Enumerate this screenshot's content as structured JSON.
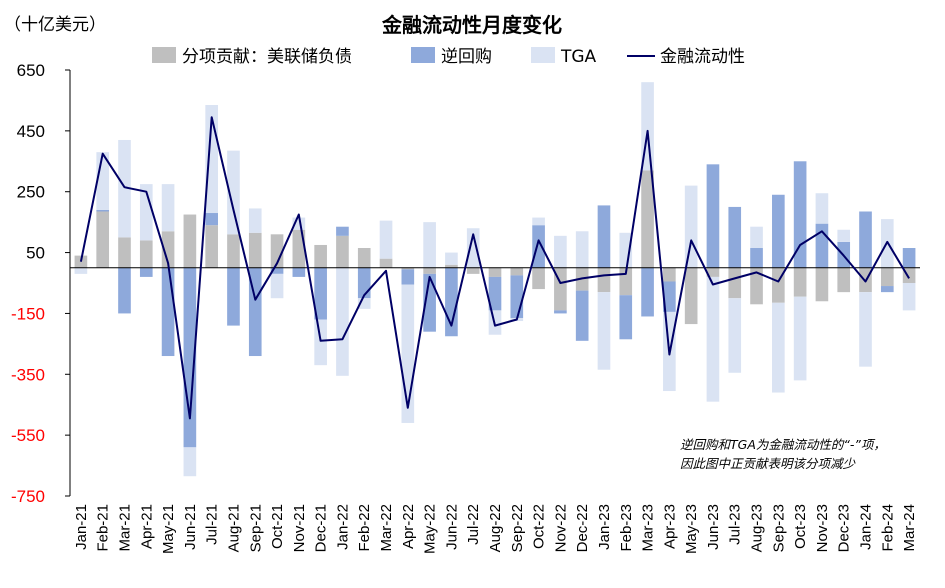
{
  "chart_data": {
    "type": "bar",
    "title": "金融流动性月度变化",
    "unit_label": "（十亿美元）",
    "ylim": [
      -750,
      650
    ],
    "yticks": [
      650,
      450,
      250,
      50,
      -150,
      -350,
      -550,
      -750
    ],
    "grid": false,
    "legend_position": "top",
    "note_lines": [
      "逆回购和TGA为金融流动性的“-”项，",
      "因此图中正贡献表明该分项减少"
    ],
    "colors": {
      "fed_debt": "#bfbfbf",
      "reverse_repo": "#8ea9db",
      "tga": "#dae3f3",
      "liquidity": "#000066",
      "positive_tick": "#000000",
      "negative_tick": "#ff0000"
    },
    "categories": [
      "Jan-21",
      "Feb-21",
      "Mar-21",
      "Apr-21",
      "May-21",
      "Jun-21",
      "Jul-21",
      "Aug-21",
      "Sep-21",
      "Oct-21",
      "Nov-21",
      "Dec-21",
      "Jan-22",
      "Feb-22",
      "Mar-22",
      "Apr-22",
      "May-22",
      "Jun-22",
      "Jul-22",
      "Aug-22",
      "Sep-22",
      "Oct-22",
      "Nov-22",
      "Dec-22",
      "Jan-23",
      "Feb-23",
      "Mar-23",
      "Apr-23",
      "May-23",
      "Jun-23",
      "Jul-23",
      "Aug-23",
      "Sep-23",
      "Oct-23",
      "Nov-23",
      "Dec-23",
      "Jan-24",
      "Feb-24",
      "Mar-24"
    ],
    "series": [
      {
        "name": "分项贡献：美联储负债",
        "type": "bar",
        "values": [
          40,
          185,
          100,
          90,
          120,
          175,
          140,
          110,
          115,
          110,
          125,
          75,
          105,
          65,
          30,
          -5,
          -20,
          10,
          -20,
          -30,
          -25,
          -70,
          -140,
          -75,
          -80,
          -90,
          320,
          -45,
          -185,
          -30,
          -100,
          -120,
          -115,
          -95,
          -110,
          -80,
          -80,
          -60,
          -50
        ]
      },
      {
        "name": "逆回购",
        "type": "bar",
        "values": [
          0,
          5,
          -150,
          -30,
          -290,
          -590,
          40,
          -190,
          -290,
          -20,
          -30,
          -170,
          30,
          -100,
          0,
          -50,
          -190,
          -225,
          0,
          -110,
          -140,
          140,
          -10,
          -165,
          205,
          -145,
          -160,
          -100,
          0,
          340,
          200,
          65,
          240,
          350,
          145,
          85,
          185,
          -20,
          65
        ]
      },
      {
        "name": "TGA",
        "type": "bar",
        "values": [
          -20,
          190,
          320,
          185,
          155,
          -95,
          355,
          275,
          80,
          -80,
          40,
          -150,
          -355,
          -35,
          125,
          -455,
          150,
          40,
          130,
          -80,
          -10,
          25,
          105,
          120,
          -255,
          115,
          290,
          -260,
          270,
          -410,
          -245,
          70,
          -295,
          -275,
          100,
          40,
          -245,
          160,
          -90
        ]
      },
      {
        "name": "金融流动性",
        "type": "line",
        "values": [
          20,
          375,
          265,
          250,
          15,
          -495,
          495,
          190,
          -105,
          15,
          175,
          -240,
          -235,
          -90,
          -10,
          -460,
          -30,
          -190,
          110,
          -190,
          -170,
          90,
          -50,
          -35,
          -25,
          -20,
          450,
          -285,
          90,
          -55,
          -35,
          -15,
          -45,
          75,
          120,
          40,
          -45,
          85,
          -35
        ]
      }
    ]
  }
}
